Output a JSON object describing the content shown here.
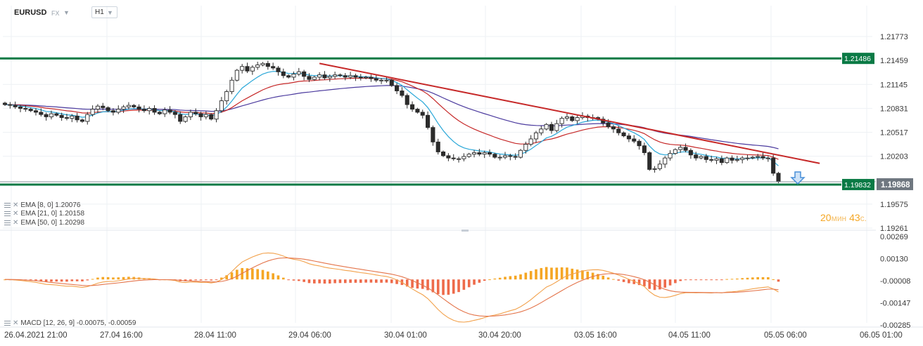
{
  "header": {
    "symbol": "EURUSD",
    "exchange": "FX",
    "timeframe": "H1"
  },
  "price_labels": {
    "resistance": "1.21486",
    "support": "1.19832",
    "current": "1.19868",
    "ticks": [
      "1.21773",
      "1.21459",
      "1.21145",
      "1.20831",
      "1.20517",
      "1.20203",
      "1.19575",
      "1.19261"
    ]
  },
  "indicators": {
    "ema8": "EMA [8, 0] 1.20076",
    "ema21": "EMA [21, 0] 1.20158",
    "ema50": "EMA [50, 0] 1.20298",
    "macd": "MACD [12, 26, 9] -0.00075, -0.00059"
  },
  "macd_ticks": [
    "0.00269",
    "0.00130",
    "-0.00008",
    "-0.00147",
    "-0.00285"
  ],
  "timer": {
    "min_value": "20",
    "min_unit": "мин",
    "sec_value": "43",
    "sec_unit": "с."
  },
  "colors": {
    "level": "#0a7a45",
    "trendline": "#c62828",
    "ema8": "#29a7d8",
    "ema21": "#c62828",
    "ema50": "#4b3a9e",
    "macd_pos": "#f5a623",
    "macd_neg": "#ee6a4a",
    "arrow": "#4a90d9"
  },
  "chart_data": {
    "type": "candlestick",
    "timeframe": "H1",
    "x_ticks": [
      "26.04.2021 21:00",
      "27.04 16:00",
      "28.04 11:00",
      "29.04 06:00",
      "30.04 01:00",
      "30.04 20:00",
      "03.05 16:00",
      "04.05 11:00",
      "05.05 06:00",
      "06.05 01:00"
    ],
    "ylim": [
      1.19261,
      1.21773
    ],
    "y_ticks": [
      1.21773,
      1.21459,
      1.21145,
      1.20831,
      1.20517,
      1.20203,
      1.19575,
      1.19261
    ],
    "levels": {
      "resistance": 1.21486,
      "support": 1.19832,
      "last": 1.19868
    },
    "trendline": {
      "from": [
        61,
        1.2142
      ],
      "to": [
        158,
        1.2011
      ]
    },
    "close": [
      1.2088,
      1.2087,
      1.2085,
      1.2083,
      1.2082,
      1.208,
      1.2078,
      1.2075,
      1.2072,
      1.2076,
      1.2074,
      1.2071,
      1.207,
      1.2073,
      1.2068,
      1.2066,
      1.2075,
      1.2082,
      1.2086,
      1.2084,
      1.208,
      1.2078,
      1.2082,
      1.2085,
      1.2087,
      1.2085,
      1.2082,
      1.208,
      1.2083,
      1.2078,
      1.2076,
      1.2081,
      1.2078,
      1.2075,
      1.2066,
      1.2072,
      1.2078,
      1.2076,
      1.2072,
      1.2075,
      1.2069,
      1.208,
      1.2093,
      1.2105,
      1.212,
      1.2133,
      1.2138,
      1.2132,
      1.2137,
      1.214,
      1.2142,
      1.2138,
      1.2136,
      1.2131,
      1.2126,
      1.2124,
      1.2128,
      1.2131,
      1.2125,
      1.2121,
      1.2124,
      1.2127,
      1.2123,
      1.2125,
      1.2127,
      1.2126,
      1.2124,
      1.2126,
      1.2124,
      1.2123,
      1.2124,
      1.2122,
      1.212,
      1.212,
      1.212,
      1.2113,
      1.2106,
      1.21,
      1.2088,
      1.2082,
      1.2078,
      1.2074,
      1.2058,
      1.2039,
      1.2026,
      1.2021,
      1.2018,
      1.2017,
      1.2017,
      1.202,
      1.2023,
      1.2025,
      1.2023,
      1.2025,
      1.2023,
      1.2019,
      1.2019,
      1.2021,
      1.202,
      1.2019,
      1.2028,
      1.2036,
      1.2043,
      1.2051,
      1.2056,
      1.2062,
      1.2054,
      1.2063,
      1.207,
      1.2072,
      1.2067,
      1.2071,
      1.2073,
      1.2071,
      1.2071,
      1.2069,
      1.2064,
      1.2059,
      1.2056,
      1.2051,
      1.2047,
      1.2043,
      1.204,
      1.2034,
      1.2025,
      1.2003,
      1.2004,
      1.201,
      1.2018,
      1.2024,
      1.2029,
      1.2032,
      1.2028,
      1.2022,
      1.2018,
      1.202,
      1.2016,
      1.2015,
      1.2017,
      1.2012,
      1.2018,
      1.2015,
      1.2016,
      1.2018,
      1.2018,
      1.2019,
      1.202,
      1.2018,
      1.2018,
      1.1998,
      1.19868
    ],
    "ema8_last": 1.20076,
    "ema21_last": 1.20158,
    "ema50_last": 1.20298,
    "macd": {
      "ylim": [
        -0.00285,
        0.00269
      ],
      "ticks": [
        0.00269,
        0.0013,
        -8e-05,
        -0.00147,
        -0.00285
      ],
      "last_macd": -0.00075,
      "last_signal": -0.00059
    }
  }
}
